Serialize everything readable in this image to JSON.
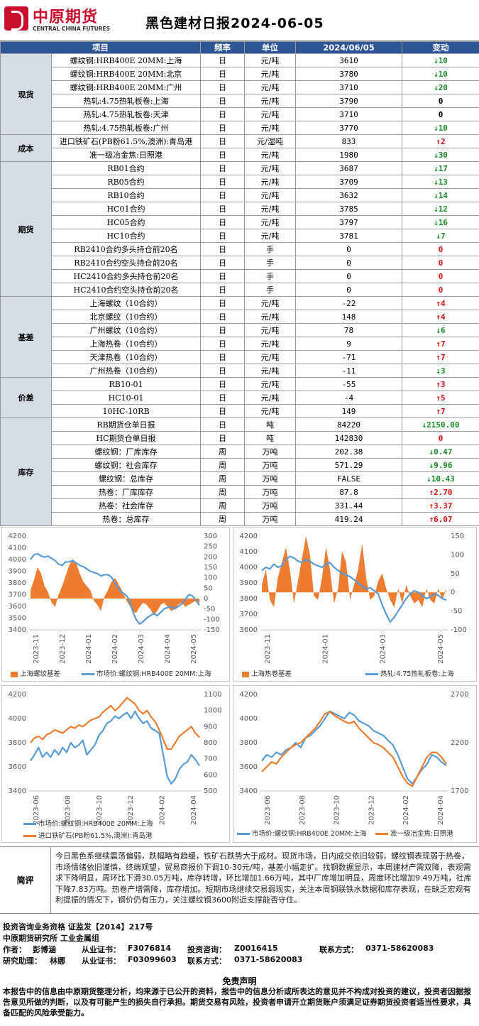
{
  "header": {
    "logo_cn": "中原期货",
    "logo_en": "CENTRAL CHINA FUTURES",
    "title": "黑色建材日报2024-06-05"
  },
  "table": {
    "headers": [
      "项目",
      "频率",
      "单位",
      "2024/06/05",
      "变动"
    ],
    "groups": [
      {
        "name": "现货",
        "rows": [
          {
            "item": "螺纹钢:HRB400E 20MM:上海",
            "freq": "日",
            "unit": "元/吨",
            "value": "3610",
            "dir": "down",
            "change": "10"
          },
          {
            "item": "螺纹钢:HRB400E 20MM:北京",
            "freq": "日",
            "unit": "元/吨",
            "value": "3780",
            "dir": "down",
            "change": "10"
          },
          {
            "item": "螺纹钢:HRB400E 20MM:广州",
            "freq": "日",
            "unit": "元/吨",
            "value": "3710",
            "dir": "down",
            "change": "20"
          },
          {
            "item": "热轧:4.75热轧板卷:上海",
            "freq": "日",
            "unit": "元/吨",
            "value": "3790",
            "dir": "none",
            "change": "0"
          },
          {
            "item": "热轧:4.75热轧板卷:天津",
            "freq": "日",
            "unit": "元/吨",
            "value": "3710",
            "dir": "none",
            "change": "0"
          },
          {
            "item": "热轧:4.75热轧板卷:广州",
            "freq": "日",
            "unit": "元/吨",
            "value": "3770",
            "dir": "down",
            "change": "10"
          }
        ]
      },
      {
        "name": "成本",
        "rows": [
          {
            "item": "进口铁矿石(PB粉61.5%,澳洲):青岛港",
            "freq": "日",
            "unit": "元/湿吨",
            "value": "833",
            "dir": "up",
            "change": "2"
          },
          {
            "item": "准一级冶金焦:日照港",
            "freq": "日",
            "unit": "元/吨",
            "value": "1980",
            "dir": "down",
            "change": "30"
          }
        ]
      },
      {
        "name": "期货",
        "rows": [
          {
            "item": "RB01合约",
            "freq": "日",
            "unit": "元/吨",
            "value": "3687",
            "dir": "down",
            "change": "17"
          },
          {
            "item": "RB05合约",
            "freq": "日",
            "unit": "元/吨",
            "value": "3709",
            "dir": "down",
            "change": "13"
          },
          {
            "item": "RB10合约",
            "freq": "日",
            "unit": "元/吨",
            "value": "3632",
            "dir": "down",
            "change": "14"
          },
          {
            "item": "HC01合约",
            "freq": "日",
            "unit": "元/吨",
            "value": "3785",
            "dir": "down",
            "change": "12"
          },
          {
            "item": "HC05合约",
            "freq": "日",
            "unit": "元/吨",
            "value": "3797",
            "dir": "down",
            "change": "16"
          },
          {
            "item": "HC10合约",
            "freq": "日",
            "unit": "元/吨",
            "value": "3781",
            "dir": "down",
            "change": "7"
          },
          {
            "item": "RB2410合约多头持仓前20名",
            "freq": "日",
            "unit": "手",
            "value": "0",
            "dir": "zero",
            "change": "0"
          },
          {
            "item": "RB2410合约空头持仓前20名",
            "freq": "日",
            "unit": "手",
            "value": "0",
            "dir": "zero",
            "change": "0"
          },
          {
            "item": "HC2410合约多头持仓前20名",
            "freq": "日",
            "unit": "手",
            "value": "0",
            "dir": "zero",
            "change": "0"
          },
          {
            "item": "HC2410合约空头持仓前20名",
            "freq": "日",
            "unit": "手",
            "value": "0",
            "dir": "zero",
            "change": "0"
          }
        ]
      },
      {
        "name": "基差",
        "rows": [
          {
            "item": "上海螺纹（10合约）",
            "freq": "日",
            "unit": "元/吨",
            "value": "-22",
            "dir": "up",
            "change": "4"
          },
          {
            "item": "北京螺纹（10合约）",
            "freq": "日",
            "unit": "元/吨",
            "value": "148",
            "dir": "up",
            "change": "4"
          },
          {
            "item": "广州螺纹（10合约）",
            "freq": "日",
            "unit": "元/吨",
            "value": "78",
            "dir": "down",
            "change": "6"
          },
          {
            "item": "上海热卷（10合约）",
            "freq": "日",
            "unit": "元/吨",
            "value": "9",
            "dir": "up",
            "change": "7"
          },
          {
            "item": "天津热卷（10合约）",
            "freq": "日",
            "unit": "元/吨",
            "value": "-71",
            "dir": "up",
            "change": "7"
          },
          {
            "item": "广州热卷（10合约）",
            "freq": "日",
            "unit": "元/吨",
            "value": "-11",
            "dir": "down",
            "change": "3"
          }
        ]
      },
      {
        "name": "价差",
        "rows": [
          {
            "item": "RB10-01",
            "freq": "日",
            "unit": "元/吨",
            "value": "-55",
            "dir": "up",
            "change": "3"
          },
          {
            "item": "HC10-01",
            "freq": "日",
            "unit": "元/吨",
            "value": "-4",
            "dir": "up",
            "change": "5"
          },
          {
            "item": "10HC-10RB",
            "freq": "日",
            "unit": "元/吨",
            "value": "149",
            "dir": "up",
            "change": "7"
          }
        ]
      },
      {
        "name": "库存",
        "rows": [
          {
            "item": "RB期货仓单日报",
            "freq": "日",
            "unit": "吨",
            "value": "84220",
            "dir": "down",
            "change": "2150.00"
          },
          {
            "item": "HC期货仓单日报",
            "freq": "日",
            "unit": "吨",
            "value": "142830",
            "dir": "zero",
            "change": "0"
          },
          {
            "item": "螺纹钢：厂库库存",
            "freq": "周",
            "unit": "万吨",
            "value": "202.38",
            "dir": "down",
            "change": "0.47"
          },
          {
            "item": "螺纹钢：社会库存",
            "freq": "周",
            "unit": "万吨",
            "value": "571.29",
            "dir": "down",
            "change": "9.96"
          },
          {
            "item": "螺纹钢：总库存",
            "freq": "周",
            "unit": "万吨",
            "value": "FALSE",
            "dir": "down",
            "change": "10.43"
          },
          {
            "item": "热卷：厂库库存",
            "freq": "周",
            "unit": "万吨",
            "value": "87.8",
            "dir": "up",
            "change": "2.70"
          },
          {
            "item": "热卷：社会库存",
            "freq": "周",
            "unit": "万吨",
            "value": "331.44",
            "dir": "up",
            "change": "3.37"
          },
          {
            "item": "热卷：总库存",
            "freq": "周",
            "unit": "万吨",
            "value": "419.24",
            "dir": "up",
            "change": "6.07"
          }
        ]
      }
    ]
  },
  "chart_data": [
    {
      "type": "line",
      "left_ticks": [
        3400,
        3500,
        3600,
        3700,
        3800,
        3900,
        4000,
        4100,
        4200
      ],
      "right_ticks": [
        -150,
        -100,
        -50,
        0,
        50,
        100,
        150,
        200,
        250,
        300
      ],
      "x_ticks": [
        "2023-11",
        "2023-12",
        "2024-01",
        "2024-02",
        "2024-03",
        "2024-04",
        "2024-05"
      ],
      "series": [
        {
          "name": "上海螺纹基差",
          "kind": "area",
          "axis": "right",
          "color": "#ed7d31",
          "values": [
            40,
            90,
            150,
            120,
            60,
            30,
            -20,
            -40,
            20,
            60,
            110,
            160,
            190,
            170,
            120,
            80,
            60,
            40,
            -10,
            -30,
            -60,
            10,
            40,
            80,
            100,
            70,
            40,
            0,
            -30,
            -60,
            -70,
            -40,
            -20,
            -30,
            -50,
            -80,
            -60,
            -30,
            -20,
            -40,
            -60,
            -50,
            -30,
            -20,
            -40,
            -30,
            -20,
            -10,
            -22
          ]
        },
        {
          "name": "市场价:螺纹钢:HRB400E 20MM:上海",
          "kind": "line",
          "axis": "left",
          "color": "#5b9bd5",
          "values": [
            4000,
            4040,
            4050,
            4030,
            4020,
            4030,
            4010,
            3990,
            3960,
            3950,
            3980,
            3980,
            3990,
            3970,
            3950,
            3940,
            3920,
            3900,
            3890,
            3880,
            3860,
            3870,
            3870,
            3850,
            3800,
            3750,
            3720,
            3700,
            3660,
            3560,
            3490,
            3450,
            3470,
            3500,
            3520,
            3540,
            3520,
            3550,
            3580,
            3590,
            3600,
            3580,
            3600,
            3620,
            3660,
            3700,
            3690,
            3650,
            3610
          ]
        }
      ]
    },
    {
      "type": "line",
      "left_ticks": [
        3600,
        3700,
        3800,
        3900,
        4000,
        4100,
        4200
      ],
      "right_ticks": [
        -100,
        -50,
        0,
        50,
        100,
        150
      ],
      "x_ticks": [
        "2023-11",
        "2024-01",
        "2024-03",
        "2024-05"
      ],
      "series": [
        {
          "name": "上海热卷基差",
          "kind": "area",
          "axis": "right",
          "color": "#ed7d31",
          "values": [
            20,
            60,
            -20,
            -40,
            40,
            80,
            120,
            60,
            -30,
            30,
            90,
            150,
            100,
            -10,
            -20,
            40,
            120,
            60,
            -30,
            10,
            110,
            80,
            -20,
            20,
            60,
            130,
            40,
            -20,
            -10,
            30,
            50,
            10,
            -20,
            -40,
            10,
            -30,
            20,
            -10,
            -30,
            -20,
            -40,
            10,
            -20,
            -30,
            10,
            -20,
            9
          ]
        },
        {
          "name": "热轧:4.75热轧板卷:上海",
          "kind": "line",
          "axis": "left",
          "color": "#5b9bd5",
          "values": [
            3980,
            4000,
            3990,
            4020,
            4000,
            4010,
            4050,
            4070,
            4060,
            4040,
            4030,
            4050,
            4040,
            4020,
            4010,
            4000,
            4020,
            4030,
            4000,
            3980,
            3960,
            3950,
            3940,
            3920,
            3900,
            3880,
            3860,
            3870,
            3850,
            3830,
            3760,
            3700,
            3650,
            3680,
            3720,
            3760,
            3800,
            3830,
            3850,
            3840,
            3820,
            3800,
            3810,
            3830,
            3820,
            3800,
            3790
          ]
        }
      ]
    },
    {
      "type": "line",
      "left_ticks": [
        3400,
        3600,
        3800,
        4000,
        4200
      ],
      "right_ticks": [
        500,
        600,
        700,
        800,
        900,
        1000,
        1100
      ],
      "x_ticks": [
        "2023-06",
        "2023-08",
        "2023-10",
        "2023-12",
        "2024-02",
        "2024-04"
      ],
      "series": [
        {
          "name": "市场价:螺纹钢:HRB400E 20MM:上海",
          "kind": "line",
          "axis": "left",
          "color": "#5b9bd5",
          "values": [
            3650,
            3700,
            3760,
            3680,
            3720,
            3680,
            3740,
            3700,
            3760,
            3720,
            3800,
            3760,
            3780,
            3820,
            3700,
            3740,
            3780,
            3860,
            3900,
            3960,
            3980,
            4020,
            4000,
            4030,
            4050,
            4000,
            4060,
            4000,
            3960,
            3980,
            3920,
            3900,
            3880,
            3700,
            3520,
            3460,
            3500,
            3580,
            3620,
            3640,
            3700,
            3660,
            3610
          ]
        },
        {
          "name": "进口铁矿石(PB粉61.5%,澳洲):青岛港",
          "kind": "line",
          "axis": "right",
          "color": "#ed7d31",
          "values": [
            800,
            830,
            840,
            820,
            850,
            860,
            880,
            870,
            860,
            880,
            900,
            890,
            910,
            900,
            920,
            940,
            950,
            960,
            990,
            1010,
            1030,
            1000,
            1020,
            1050,
            1080,
            1060,
            1040,
            1000,
            980,
            1000,
            960,
            930,
            880,
            820,
            760,
            760,
            800,
            840,
            860,
            880,
            900,
            860,
            833
          ]
        }
      ]
    },
    {
      "type": "line",
      "left_ticks": [
        3400,
        3600,
        3800,
        4000,
        4200
      ],
      "right_ticks": [
        1700,
        2200,
        2700
      ],
      "x_ticks": [
        "2023-06",
        "2023-08",
        "2023-10",
        "2023-12",
        "2024-02",
        "2024-04"
      ],
      "series": [
        {
          "name": "市场价:螺纹钢:HRB400E 20MM:上海",
          "kind": "line",
          "axis": "left",
          "color": "#5b9bd5",
          "values": [
            3650,
            3700,
            3680,
            3720,
            3700,
            3740,
            3760,
            3800,
            3760,
            3840,
            3860,
            3900,
            3940,
            4000,
            4060,
            4040,
            4020,
            4000,
            4050,
            4030,
            3980,
            3960,
            3940,
            3900,
            3880,
            3860,
            3820,
            3780,
            3700,
            3600,
            3500,
            3460,
            3520,
            3580,
            3620,
            3700,
            3680,
            3640,
            3610
          ]
        },
        {
          "name": "准一级冶金焦:日照港",
          "kind": "line",
          "axis": "right",
          "color": "#ed7d31",
          "values": [
            1900,
            1950,
            2000,
            1980,
            2050,
            2100,
            2150,
            2180,
            2200,
            2250,
            2300,
            2350,
            2420,
            2500,
            2520,
            2480,
            2450,
            2420,
            2400,
            2420,
            2350,
            2300,
            2250,
            2200,
            2180,
            2150,
            2100,
            2050,
            1950,
            1850,
            1780,
            1750,
            1850,
            1950,
            2050,
            2100,
            2100,
            2050,
            1980
          ]
        }
      ]
    }
  ],
  "comment": {
    "label": "简评",
    "text": "今日黑色系继续震荡偏弱，跌幅略有趋缓，铁矿石跌势大于成材。现货市场，日内成交依旧较弱，螺纹钢表现弱于热卷，市场情绪依旧谨慎，终端观望，贸易商报价下调10-30元/吨，基差小幅走扩。找钢数据显示，本周建材产需双降，表观需求下降明显，周环比下滑30.05万吨，库存转增，环比增加1.66万吨，其中厂库增加明显，周度环比增加9.49万吨，社库下降7.83万吨。热卷产增需降，库存增加。短期市场继续交易弱现实，关注本周钢联铁水数据和库存表现，在缺乏宏观有利提振的情况下，钢价仍有压力，关注螺纹钢3600附近支撑能否守住。"
  },
  "footer": {
    "line1": "投资咨询业务资格   证监发【2014】217号",
    "line2": "中原期货研究所   工业金属组",
    "author_label": "作者：",
    "author": "彭博涵",
    "cert_label": "从业证书：",
    "cert": "F3076814",
    "advisory_label": "投资咨询：",
    "advisory": "Z0016415",
    "contact_label": "联系方式：",
    "contact": "0371-58620083",
    "assistant_label": "研究助理：",
    "assistant": "林娜",
    "cert2_label": "从业证书：",
    "cert2": "F03099603",
    "contact2_label": "联系方式：",
    "contact2": "0371-58620083"
  },
  "disclaimer": {
    "title": "免责声明",
    "text": "本报告中的信息由中原期货整理分析，均来源于已公开的资料，报告中的信息分析或所表达的意见并不构成对投资的建议，投资者因据报告意见所做的判断，以及有可能产生的损失自行承担。期货交易有风险，投资者申请开立期货账户须满足证券期货投资者适当性要求，具备匹配的风险承受能力。"
  }
}
